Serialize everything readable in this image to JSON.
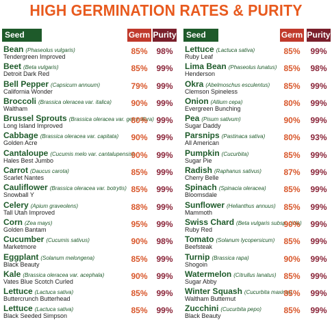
{
  "title": "HIGH GERMINATION RATES & PURITY",
  "headers": {
    "seed": "Seed",
    "germ": "Germ",
    "purity": "Purity"
  },
  "colors": {
    "title": "#e85a1e",
    "seed_header": "#1e5a2a",
    "germ_header": "#c0392b",
    "purity_header": "#7a1f2b"
  },
  "left": [
    {
      "name": "Bean",
      "latin": "(Phaseolus vulgaris)",
      "variety": "Tendergreen Improved",
      "germ": "85%",
      "purity": "98%"
    },
    {
      "name": "Beet",
      "latin": "(Beta vulgaris)",
      "variety": "Detroit Dark Red",
      "germ": "85%",
      "purity": "99%"
    },
    {
      "name": "Bell Pepper",
      "latin": "(Capsicum annuum)",
      "variety": "California Wonder",
      "germ": "79%",
      "purity": "99%"
    },
    {
      "name": "Broccoli",
      "latin": "(Brassica oleracea var. italica)",
      "variety": "Waltham",
      "germ": "90%",
      "purity": "99%"
    },
    {
      "name": "Brussel Sprouts",
      "latin": "(Brassica oleracea var. gemmifera)",
      "variety": "Long Island Improved",
      "germ": "80%",
      "purity": "99%"
    },
    {
      "name": "Cabbage",
      "latin": "(Brassica oleracea var. capitata)",
      "variety": "Golden Acre",
      "germ": "90%",
      "purity": "99%"
    },
    {
      "name": "Cantaloupe",
      "latin": "(Cucumis melo var. cantalupensis)",
      "variety": "Hales Best Jumbo",
      "germ": "90%",
      "purity": "99%"
    },
    {
      "name": "Carrot",
      "latin": "(Daucus carota)",
      "variety": "Scarlet Nantes",
      "germ": "85%",
      "purity": "99%"
    },
    {
      "name": "Cauliflower",
      "latin": "(Brassica oleracea var. botrytis)",
      "variety": "Snowball Y",
      "germ": "85%",
      "purity": "99%"
    },
    {
      "name": "Celery",
      "latin": "(Apium graveolens)",
      "variety": "Tall Utah Improved",
      "germ": "88%",
      "purity": "99%"
    },
    {
      "name": "Corn",
      "latin": "(Zea mays)",
      "variety": "Golden Bantam",
      "germ": "95%",
      "purity": "99%"
    },
    {
      "name": "Cucumber",
      "latin": "(Cucumis sativus)",
      "variety": "Marketmore",
      "germ": "90%",
      "purity": "98%"
    },
    {
      "name": "Eggplant",
      "latin": "(Solanum melongena)",
      "variety": "Black Beauty",
      "germ": "85%",
      "purity": "99%"
    },
    {
      "name": "Kale",
      "latin": "(Brassica oleracea var. acephala)",
      "variety": "Vates Blue Scotch Curled",
      "germ": "90%",
      "purity": "99%"
    },
    {
      "name": "Lettuce",
      "latin": "(Lactuca sativa)",
      "variety": "Buttercrunch Butterhead",
      "germ": "85%",
      "purity": "99%"
    },
    {
      "name": "Lettuce",
      "latin": "(Lactuca sativa)",
      "variety": "Black Seeded Simpson",
      "germ": "85%",
      "purity": "99%"
    }
  ],
  "right": [
    {
      "name": "Lettuce",
      "latin": "(Lactuca sativa)",
      "variety": "Ruby Leaf",
      "germ": "85%",
      "purity": "99%"
    },
    {
      "name": "Lima Bean",
      "latin": "(Phaseolus lunatus)",
      "variety": "Henderson",
      "germ": "85%",
      "purity": "98%"
    },
    {
      "name": "Okra",
      "latin": "(Abelmoschus esculentus)",
      "variety": "Clemson Spineless",
      "germ": "85%",
      "purity": "99%"
    },
    {
      "name": "Onion",
      "latin": "(Allium cepa)",
      "variety": "Evergreen Bunching",
      "germ": "80%",
      "purity": "99%"
    },
    {
      "name": "Pea",
      "latin": "(Pisum sativum)",
      "variety": "Sugar Daddy",
      "germ": "90%",
      "purity": "99%"
    },
    {
      "name": "Parsnips",
      "latin": "(Pastinaca sativa)",
      "variety": "All American",
      "germ": "80%",
      "purity": "93%"
    },
    {
      "name": "Pumpkin",
      "latin": "(Cucurbita)",
      "variety": "Sugar Pie",
      "germ": "85%",
      "purity": "99%"
    },
    {
      "name": "Radish",
      "latin": "(Raphanus sativus)",
      "variety": "Cherry Belle",
      "germ": "87%",
      "purity": "99%"
    },
    {
      "name": "Spinach",
      "latin": "(Spinacia oleracea)",
      "variety": "Bloomsdale",
      "germ": "85%",
      "purity": "99%"
    },
    {
      "name": "Sunflower",
      "latin": "(Helianthus annuus)",
      "variety": "Mammoth",
      "germ": "85%",
      "purity": "99%"
    },
    {
      "name": "Swiss Chard",
      "latin": "(Beta vulgaris subsp. cicla)",
      "variety": "Ruby Red",
      "germ": "90%",
      "purity": "99%"
    },
    {
      "name": "Tomato",
      "latin": "(Solanum lycopersicum)",
      "variety": "Beefsteak",
      "germ": "85%",
      "purity": "99%"
    },
    {
      "name": "Turnip",
      "latin": "(Brassica rapa)",
      "variety": "Shogoin",
      "germ": "90%",
      "purity": "99%"
    },
    {
      "name": "Watermelon",
      "latin": "(Citrullus lanatus)",
      "variety": "Sugar Abby",
      "germ": "85%",
      "purity": "99%"
    },
    {
      "name": "Winter Squash",
      "latin": "(Cucurbita maxima)",
      "variety": "Waltham Butternut",
      "germ": "85%",
      "purity": "99%"
    },
    {
      "name": "Zucchini",
      "latin": "(Cucurbita pepo)",
      "variety": "Black Beauty",
      "germ": "85%",
      "purity": "99%"
    }
  ]
}
